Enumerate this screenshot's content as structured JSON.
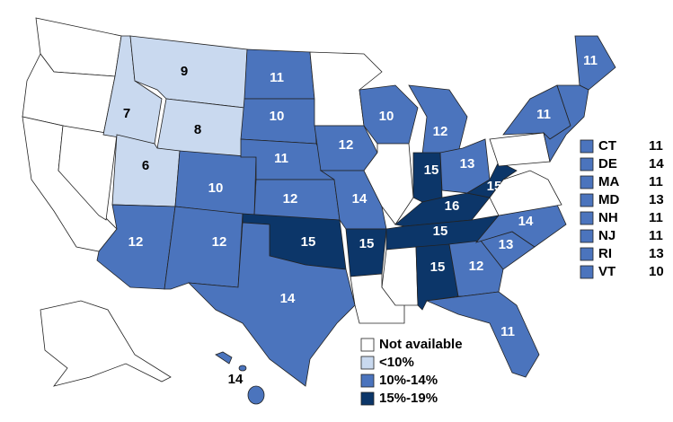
{
  "map": {
    "states": [
      {
        "color": "#ffffff"
      },
      {
        "color": "#ffffff"
      },
      {
        "color": "#ffffff"
      },
      {
        "color": "#ffffff"
      },
      {
        "value": 7,
        "color": "#c9d9ef"
      },
      {
        "value": 9,
        "color": "#c9d9ef"
      },
      {
        "value": 8,
        "color": "#c9d9ef"
      },
      {
        "value": 6,
        "color": "#c9d9ef"
      },
      {
        "value": 12,
        "color": "#4b74bd"
      },
      {
        "value": 10,
        "color": "#4b74bd"
      },
      {
        "value": 12,
        "color": "#4b74bd"
      },
      {
        "value": 11,
        "color": "#4b74bd"
      },
      {
        "value": 10,
        "color": "#4b74bd"
      },
      {
        "value": 11,
        "color": "#4b74bd"
      },
      {
        "value": 12,
        "color": "#4b74bd"
      },
      {
        "value": 15,
        "color": "#0c3669"
      },
      {
        "value": 14,
        "color": "#4b74bd"
      },
      {
        "color": "#ffffff"
      },
      {
        "value": 12,
        "color": "#4b74bd"
      },
      {
        "value": 14,
        "color": "#4b74bd"
      },
      {
        "value": 15,
        "color": "#0c3669"
      },
      {
        "color": "#ffffff"
      },
      {
        "value": 10,
        "color": "#4b74bd"
      },
      {
        "color": "#ffffff"
      },
      {
        "value": 12,
        "color": "#4b74bd"
      },
      {
        "value": 15,
        "color": "#0c3669"
      },
      {
        "value": 13,
        "color": "#4b74bd"
      },
      {
        "value": 16,
        "color": "#0c3669"
      },
      {
        "value": 15,
        "color": "#0c3669"
      },
      {
        "color": "#ffffff"
      },
      {
        "value": 15,
        "color": "#0c3669"
      },
      {
        "value": 12,
        "color": "#4b74bd"
      },
      {
        "value": 11,
        "color": "#4b74bd"
      },
      {
        "value": 13,
        "color": "#4b74bd"
      },
      {
        "value": 14,
        "color": "#4b74bd"
      },
      {
        "color": "#ffffff"
      },
      {
        "value": 15,
        "color": "#0c3669"
      },
      {
        "color": "#ffffff"
      },
      {
        "value": 11,
        "color": "#4b74bd"
      },
      {
        "value": 11,
        "color": "#4b74bd"
      },
      {
        "color": "#4b74bd"
      },
      {
        "color": "#ffffff"
      },
      {
        "value": 14,
        "color": "#4b74bd"
      }
    ],
    "side_list": [
      {
        "label": "CT",
        "value": 11,
        "color": "#4b74bd"
      },
      {
        "label": "DE",
        "value": 14,
        "color": "#4b74bd"
      },
      {
        "label": "MA",
        "value": 11,
        "color": "#4b74bd"
      },
      {
        "label": "MD",
        "value": 13,
        "color": "#4b74bd"
      },
      {
        "label": "NH",
        "value": 11,
        "color": "#4b74bd"
      },
      {
        "label": "NJ",
        "value": 11,
        "color": "#4b74bd"
      },
      {
        "label": "RI",
        "value": 13,
        "color": "#4b74bd"
      },
      {
        "label": "VT",
        "value": 10,
        "color": "#4b74bd"
      }
    ],
    "legend": [
      {
        "label": "Not available",
        "color": "#ffffff"
      },
      {
        "label": "<10%",
        "color": "#c9d9ef"
      },
      {
        "label": "10%-14%",
        "color": "#4b74bd"
      },
      {
        "label": "15%-19%",
        "color": "#0c3669"
      }
    ]
  }
}
